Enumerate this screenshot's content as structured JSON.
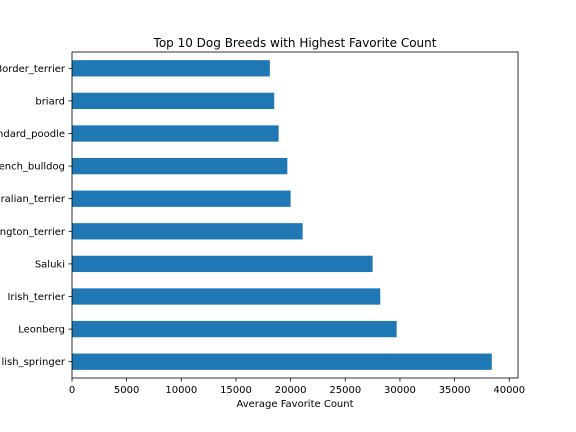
{
  "chart_data": {
    "type": "bar",
    "orientation": "horizontal",
    "title": "Top 10 Dog Breeds with Highest Favorite Count",
    "xlabel": "Average Favorite Count",
    "ylabel": "",
    "xlim": [
      0,
      40800
    ],
    "x_ticks": [
      0,
      5000,
      10000,
      15000,
      20000,
      25000,
      30000,
      35000,
      40000
    ],
    "categories": [
      "English_springer",
      "Leonberg",
      "Irish_terrier",
      "Saluki",
      "Bedlington_terrier",
      "Australian_terrier",
      "French_bulldog",
      "standard_poodle",
      "briard",
      "Border_terrier"
    ],
    "tick_text": [
      "lish_springer",
      "Leonberg",
      "Irish_terrier",
      "Saluki",
      "ngton_terrier",
      "ralian_terrier",
      "ench_bulldog",
      "ndard_poodle",
      "briard",
      "Border_terrier"
    ],
    "values": [
      38400,
      29700,
      28200,
      27500,
      21100,
      20000,
      19700,
      18900,
      18500,
      18100
    ],
    "bar_color": "#1f77b4",
    "grid": false,
    "legend": "none"
  }
}
